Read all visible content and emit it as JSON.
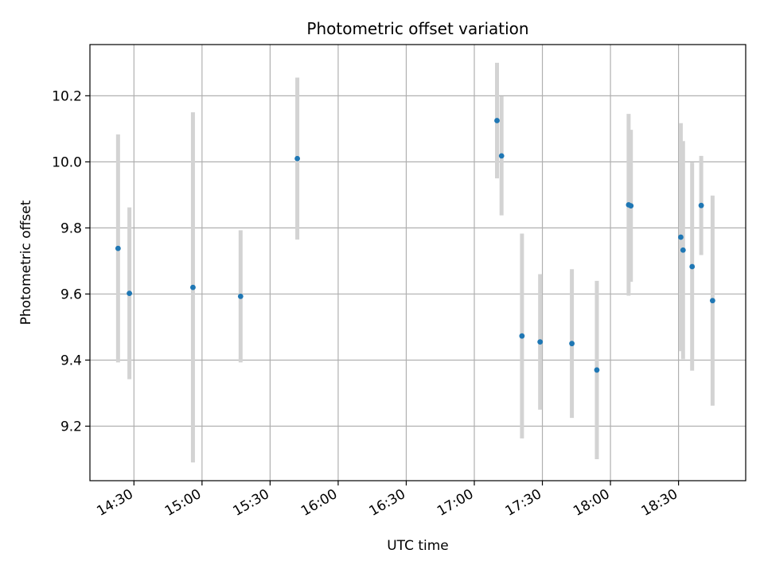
{
  "chart_data": {
    "type": "scatter",
    "title": "Photometric offset variation",
    "xlabel": "UTC time",
    "ylabel": "Photometric offset",
    "x_tick_labels": [
      "14:30",
      "15:00",
      "15:30",
      "16:00",
      "16:30",
      "17:00",
      "17:30",
      "18:00",
      "18:30"
    ],
    "x_tick_minutes": [
      870,
      900,
      930,
      960,
      990,
      1020,
      1050,
      1080,
      1110
    ],
    "y_ticks": [
      9.2,
      9.4,
      9.6,
      9.8,
      10.0,
      10.2
    ],
    "y_tick_labels": [
      "9.2",
      "9.4",
      "9.6",
      "9.8",
      "10.0",
      "10.2"
    ],
    "xlim_minutes": [
      850.6,
      1139.6
    ],
    "ylim": [
      9.035,
      10.355
    ],
    "grid": true,
    "marker_color": "#1f77b4",
    "errorbar_color": "#d3d3d3",
    "series": [
      {
        "points": [
          {
            "x": "14:23",
            "y": 9.738,
            "yerr": 0.345
          },
          {
            "x": "14:28",
            "y": 9.602,
            "yerr": 0.26
          },
          {
            "x": "14:56",
            "y": 9.62,
            "yerr": 0.53
          },
          {
            "x": "15:17",
            "y": 9.593,
            "yerr": 0.2
          },
          {
            "x": "15:42",
            "y": 10.01,
            "yerr": 0.245
          },
          {
            "x": "17:10",
            "y": 10.125,
            "yerr": 0.175
          },
          {
            "x": "17:12",
            "y": 10.018,
            "yerr": 0.18
          },
          {
            "x": "17:21",
            "y": 9.473,
            "yerr": 0.31
          },
          {
            "x": "17:29",
            "y": 9.455,
            "yerr": 0.205
          },
          {
            "x": "17:43",
            "y": 9.45,
            "yerr": 0.225
          },
          {
            "x": "17:54",
            "y": 9.37,
            "yerr": 0.27
          },
          {
            "x": "18:08",
            "y": 9.87,
            "yerr": 0.275
          },
          {
            "x": "18:09",
            "y": 9.867,
            "yerr": 0.23
          },
          {
            "x": "18:31",
            "y": 9.772,
            "yerr": 0.345
          },
          {
            "x": "18:32",
            "y": 9.733,
            "yerr": 0.33
          },
          {
            "x": "18:36",
            "y": 9.683,
            "yerr": 0.315
          },
          {
            "x": "18:40",
            "y": 9.868,
            "yerr": 0.15
          },
          {
            "x": "18:45",
            "y": 9.58,
            "yerr": 0.318
          }
        ]
      }
    ]
  }
}
